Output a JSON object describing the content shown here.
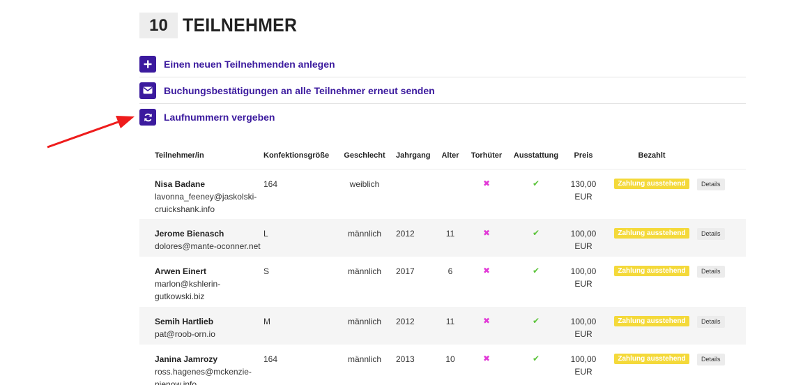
{
  "header": {
    "count": "10",
    "title": "TEILNEHMER"
  },
  "actions": [
    {
      "label": "Einen neuen Teilnehmenden anlegen",
      "icon": "plus-icon"
    },
    {
      "label": "Buchungsbestätigungen an alle Teilnehmer erneut senden",
      "icon": "envelope-icon"
    },
    {
      "label": "Laufnummern vergeben",
      "icon": "refresh-icon"
    }
  ],
  "table": {
    "columns": [
      "Teilnehmer/in",
      "Konfektionsgröße",
      "Geschlecht",
      "Jahrgang",
      "Alter",
      "Torhüter",
      "Ausstattung",
      "Preis",
      "Bezahlt",
      ""
    ],
    "rows": [
      {
        "name": "Nisa Badane",
        "email_lines": [
          "lavonna_feeney@jaskolski-",
          "cruickshank.info"
        ],
        "size": "164",
        "gender": "weiblich",
        "year": "",
        "age": "",
        "keeper": "✖",
        "equipment": "✔",
        "price_lines": [
          "130,00",
          "EUR"
        ],
        "paid": "Zahlung ausstehend",
        "details": "Details"
      },
      {
        "name": "Jerome Bienasch",
        "email_lines": [
          "dolores@mante-oconner.net"
        ],
        "size": "L",
        "gender": "männlich",
        "year": "2012",
        "age": "11",
        "keeper": "✖",
        "equipment": "✔",
        "price_lines": [
          "100,00",
          "EUR"
        ],
        "paid": "Zahlung ausstehend",
        "details": "Details"
      },
      {
        "name": "Arwen Einert",
        "email_lines": [
          "marlon@kshlerin-",
          "gutkowski.biz"
        ],
        "size": "S",
        "gender": "männlich",
        "year": "2017",
        "age": "6",
        "keeper": "✖",
        "equipment": "✔",
        "price_lines": [
          "100,00",
          "EUR"
        ],
        "paid": "Zahlung ausstehend",
        "details": "Details"
      },
      {
        "name": "Semih Hartlieb",
        "email_lines": [
          "pat@roob-orn.io"
        ],
        "size": "M",
        "gender": "männlich",
        "year": "2012",
        "age": "11",
        "keeper": "✖",
        "equipment": "✔",
        "price_lines": [
          "100,00",
          "EUR"
        ],
        "paid": "Zahlung ausstehend",
        "details": "Details"
      },
      {
        "name": "Janina Jamrozy",
        "email_lines": [
          "ross.hagenes@mckenzie-",
          "nienow.info"
        ],
        "size": "164",
        "gender": "männlich",
        "year": "2013",
        "age": "10",
        "keeper": "✖",
        "equipment": "✔",
        "price_lines": [
          "100,00",
          "EUR"
        ],
        "paid": "Zahlung ausstehend",
        "details": "Details"
      }
    ]
  },
  "colors": {
    "accent": "#3b1a9e",
    "cross": "#e23ad7",
    "check": "#5cc43b",
    "pending_badge": "#f4d93a",
    "arrow": "#ee1c1c"
  }
}
